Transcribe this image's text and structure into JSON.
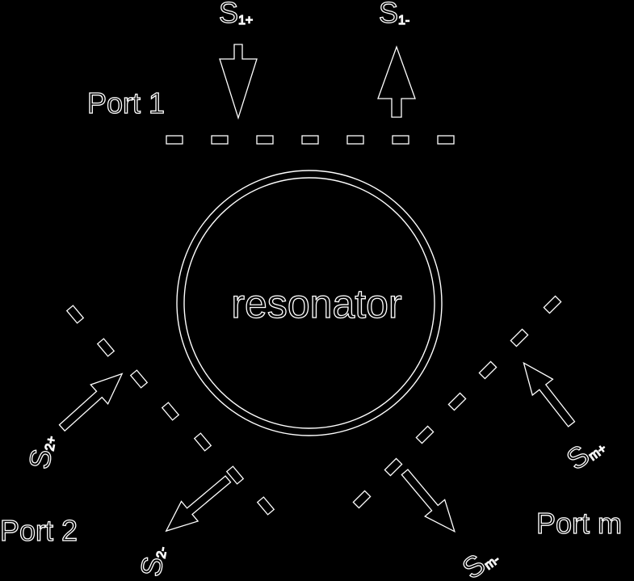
{
  "center_label": "resonator",
  "ports": [
    {
      "label": "Port 1",
      "in_main": "S",
      "in_sub": "1+",
      "out_main": "S",
      "out_sub": "1-"
    },
    {
      "label": "Port 2",
      "in_main": "S",
      "in_sub": "2+",
      "out_main": "S",
      "out_sub": "2-"
    },
    {
      "label": "Port m",
      "in_main": "S",
      "in_sub": "m+",
      "out_main": "S",
      "out_sub": "m-"
    }
  ],
  "colors": {
    "background": "#000000",
    "line": "#ffffff"
  }
}
